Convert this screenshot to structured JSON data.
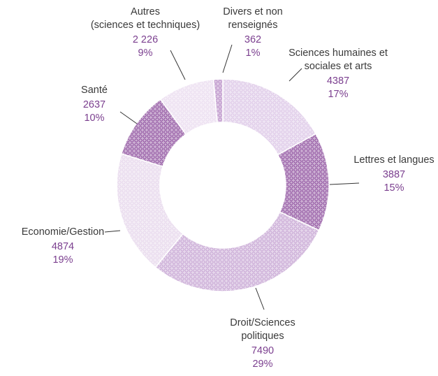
{
  "chart_data": {
    "type": "pie",
    "donut": true,
    "title": "",
    "start_angle_deg": 0,
    "direction": "clockwise",
    "slices": [
      {
        "label": [
          "Sciences humaines et",
          "sociales et arts"
        ],
        "value_text": "4387",
        "percent_text": "17%",
        "value": 4387,
        "percent": 17,
        "color": "#dcc6e6",
        "pattern": "circles"
      },
      {
        "label": [
          "Lettres et langues"
        ],
        "value_text": "3887",
        "percent_text": "15%",
        "value": 3887,
        "percent": 15,
        "color": "#8e4f9e",
        "pattern": "circles"
      },
      {
        "label": [
          "Droit/Sciences",
          "politiques"
        ],
        "value_text": "7490",
        "percent_text": "29%",
        "value": 7490,
        "percent": 29,
        "color": "#c6a4d3",
        "pattern": "circles"
      },
      {
        "label": [
          "Economie/Gestion"
        ],
        "value_text": "4874",
        "percent_text": "19%",
        "value": 4874,
        "percent": 19,
        "color": "#e6d6ec",
        "pattern": "circles"
      },
      {
        "label": [
          "Santé"
        ],
        "value_text": "2637",
        "percent_text": "10%",
        "value": 2637,
        "percent": 10,
        "color": "#8e4f9e",
        "pattern": "circles"
      },
      {
        "label": [
          "Autres",
          "(sciences et techniques)"
        ],
        "value_text": "2 226",
        "percent_text": "9%",
        "value": 2226,
        "percent": 9,
        "color": "#eadcef",
        "pattern": "circles"
      },
      {
        "label": [
          "Divers et non",
          "renseignés"
        ],
        "value_text": "362",
        "percent_text": "1%",
        "value": 362,
        "percent": 1,
        "color": "#b78bc6",
        "pattern": "circles"
      }
    ]
  }
}
